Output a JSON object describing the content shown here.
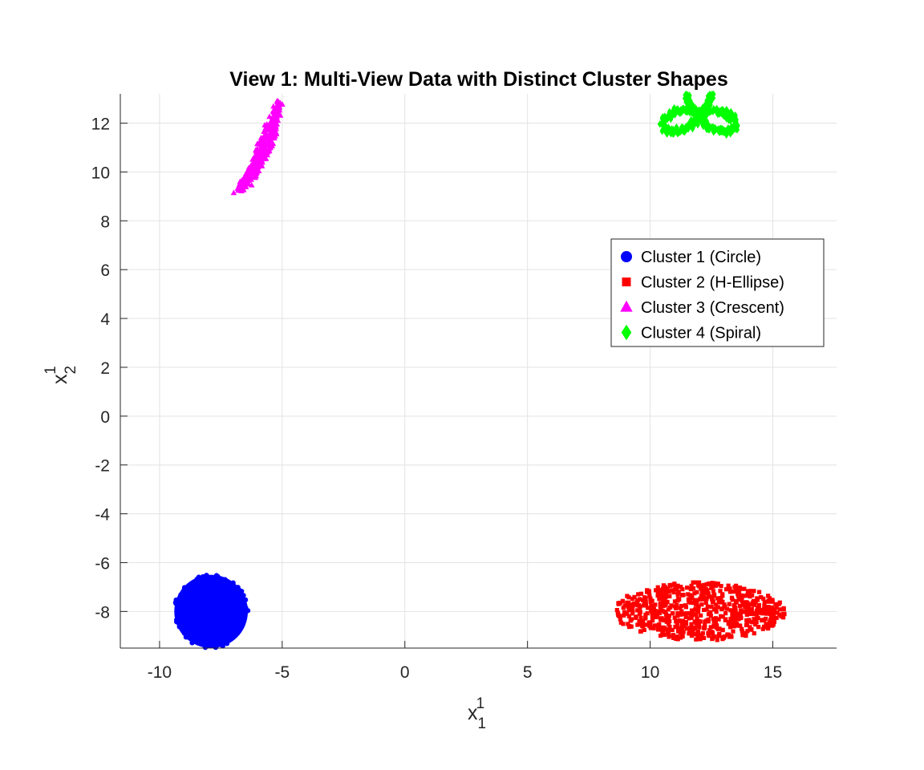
{
  "chart_data": {
    "type": "scatter",
    "title": "View 1: Multi-View Data with Distinct Cluster Shapes",
    "xlabel": {
      "base": "x",
      "sub": "1",
      "sup": "1"
    },
    "ylabel": {
      "base": "x",
      "sub": "2",
      "sup": "1"
    },
    "xlim": [
      -11.6,
      17.6
    ],
    "ylim": [
      -9.5,
      13.2
    ],
    "xticks": [
      -10,
      -5,
      0,
      5,
      10,
      15
    ],
    "xtick_labels": [
      "-10",
      "-5",
      "0",
      "5",
      "10",
      "15"
    ],
    "yticks": [
      -8,
      -6,
      -4,
      -2,
      0,
      2,
      4,
      6,
      8,
      10,
      12
    ],
    "ytick_labels": [
      "-8",
      "-6",
      "-4",
      "-2",
      "0",
      "2",
      "4",
      "6",
      "8",
      "10",
      "12"
    ],
    "grid": true,
    "legend": {
      "placement": "upper-right"
    },
    "series": [
      {
        "name": "Cluster 1 (Circle)",
        "marker": "circle",
        "color": "#0000ff",
        "shape": {
          "kind": "disk",
          "cx": -7.9,
          "cy": -8.0,
          "r": 1.5,
          "n": 260
        }
      },
      {
        "name": "Cluster 2 (H-Ellipse)",
        "marker": "square",
        "color": "#ff0000",
        "shape": {
          "kind": "ellipse",
          "cx": 12.0,
          "cy": -8.0,
          "rx": 3.5,
          "ry": 1.2,
          "n": 700
        }
      },
      {
        "name": "Cluster 3 (Crescent)",
        "marker": "triangle",
        "color": "#ff00ff",
        "shape": {
          "kind": "crescent",
          "x_range": [
            -7.6,
            -5.0
          ],
          "y_range": [
            9.0,
            12.9
          ],
          "n": 320
        }
      },
      {
        "name": "Cluster 4 (Spiral)",
        "marker": "diamond",
        "color": "#00ff00",
        "shape": {
          "kind": "trefoil",
          "cx": 12.0,
          "cy": 11.9,
          "extent_x": [
            10.4,
            13.6
          ],
          "extent_y": [
            10.3,
            13.0
          ],
          "n": 650
        }
      }
    ]
  }
}
